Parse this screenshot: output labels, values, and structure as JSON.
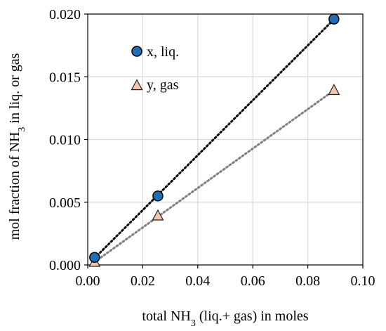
{
  "chart_data": {
    "type": "scatter",
    "xlabel": {
      "before": "total NH",
      "sub": "3",
      "after": " (liq.+ gas) in moles"
    },
    "ylabel": {
      "before": "mol fraction of NH",
      "sub": "3",
      "after": " in liq. or gas"
    },
    "xlim": [
      0,
      0.1
    ],
    "ylim": [
      0,
      0.02
    ],
    "x_ticks": [
      "0.00",
      "0.02",
      "0.04",
      "0.06",
      "0.08",
      "0.10"
    ],
    "y_ticks": [
      "0.000",
      "0.005",
      "0.010",
      "0.015",
      "0.020"
    ],
    "x_tick_values": [
      0,
      0.02,
      0.04,
      0.06,
      0.08,
      0.1
    ],
    "y_tick_values": [
      0,
      0.005,
      0.01,
      0.015,
      0.02
    ],
    "grid": true,
    "legend_position": "top-left",
    "series": [
      {
        "name": "x, liq.",
        "marker": "circle",
        "fill_color": "#1f6fb5",
        "edge_color": "#000000",
        "trendline_color": "#000000",
        "x": [
          0.0025,
          0.0255,
          0.0895
        ],
        "y": [
          0.0006,
          0.0055,
          0.0196
        ]
      },
      {
        "name": "y, gas",
        "marker": "triangle",
        "fill_color": "#f4c4ad",
        "edge_color": "#222222",
        "trendline_color": "#7f7f7f",
        "x": [
          0.0025,
          0.0255,
          0.0895
        ],
        "y": [
          0.0002,
          0.0039,
          0.0139
        ]
      }
    ]
  }
}
